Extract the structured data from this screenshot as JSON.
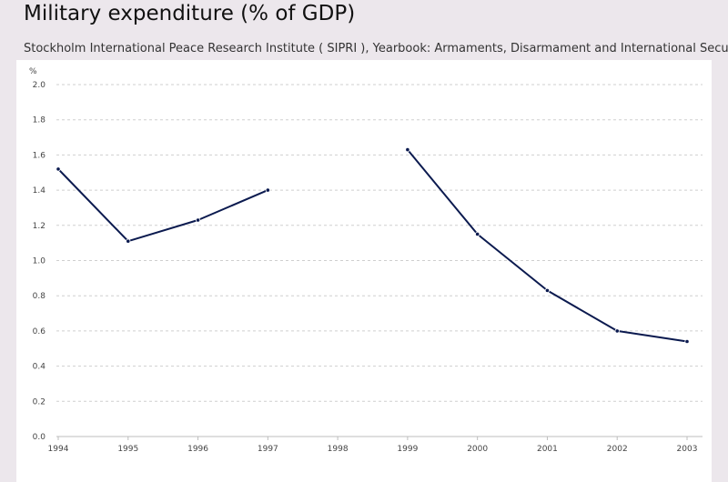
{
  "header": {
    "title": "Military expenditure (% of GDP)",
    "source": "Stockholm International Peace Research Institute ( SIPRI ), Yearbook: Armaments, Disarmament and International Security."
  },
  "chart_data": {
    "type": "line",
    "title": "Military expenditure (% of GDP)",
    "ylabel": "%",
    "xlabel": "",
    "categories": [
      "1994",
      "1995",
      "1996",
      "1997",
      "1998",
      "1999",
      "2000",
      "2001",
      "2002",
      "2003"
    ],
    "series": [
      {
        "color": "#0b1a4f",
        "values": [
          1.52,
          1.11,
          1.23,
          1.4,
          null,
          1.63,
          1.15,
          0.83,
          0.6,
          0.54
        ]
      }
    ],
    "ylim": [
      0,
      2.0
    ],
    "yticks": [
      "0.0",
      "0.2",
      "0.4",
      "0.6",
      "0.8",
      "1.0",
      "1.2",
      "1.4",
      "1.6",
      "1.8",
      "2.0"
    ],
    "grid": true,
    "legend": "none"
  }
}
